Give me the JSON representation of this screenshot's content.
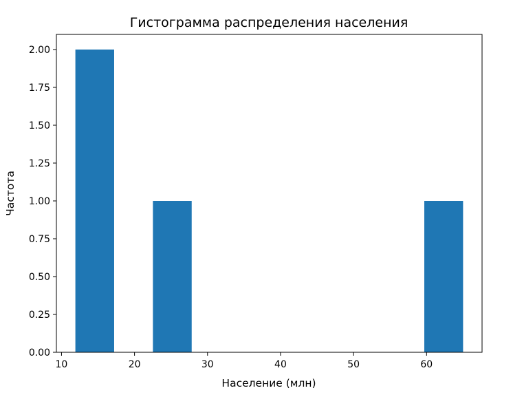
{
  "chart_data": {
    "type": "histogram",
    "title": "Гистограмма распределения населения",
    "xlabel": "Население (млн)",
    "ylabel": "Частота",
    "bin_range": [
      11.9,
      65.0
    ],
    "counts": [
      2,
      0,
      1,
      0,
      0,
      0,
      0,
      0,
      0,
      1
    ],
    "xlim": [
      9.3,
      67.6
    ],
    "ylim": [
      0,
      2.1
    ],
    "xticks": [
      10,
      20,
      30,
      40,
      50,
      60
    ],
    "xtick_labels": [
      "10",
      "20",
      "30",
      "40",
      "50",
      "60"
    ],
    "yticks": [
      0,
      0.25,
      0.5,
      0.75,
      1.0,
      1.25,
      1.5,
      1.75,
      2.0
    ],
    "ytick_labels": [
      "0.00",
      "0.25",
      "0.50",
      "0.75",
      "1.00",
      "1.25",
      "1.50",
      "1.75",
      "2.00"
    ],
    "bar_color": "#1f77b4",
    "grid": false,
    "legend": "none"
  }
}
